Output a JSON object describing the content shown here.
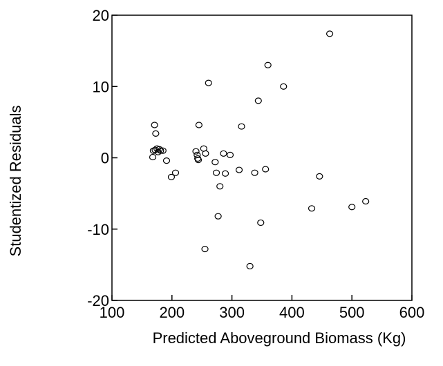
{
  "chart_data": {
    "type": "scatter",
    "title": "",
    "xlabel": "Predicted Aboveground Biomass (Kg)",
    "ylabel": "Studentized Residuals",
    "xlim": [
      100,
      600
    ],
    "ylim": [
      -20,
      20
    ],
    "x_ticks": [
      100,
      200,
      300,
      400,
      500,
      600
    ],
    "y_ticks": [
      -20,
      -10,
      0,
      10,
      20
    ],
    "grid": false,
    "legend": "none",
    "marker": "open-circle",
    "color": "#000000",
    "points": [
      {
        "x": 168,
        "y": 0.1
      },
      {
        "x": 169,
        "y": 1.0
      },
      {
        "x": 171,
        "y": 4.6
      },
      {
        "x": 172,
        "y": 1.1
      },
      {
        "x": 173,
        "y": 3.4
      },
      {
        "x": 175,
        "y": 1.3
      },
      {
        "x": 177,
        "y": 0.8
      },
      {
        "x": 179,
        "y": 1.2
      },
      {
        "x": 181,
        "y": 1.0
      },
      {
        "x": 185,
        "y": 1.0
      },
      {
        "x": 191,
        "y": -0.4
      },
      {
        "x": 199,
        "y": -2.7
      },
      {
        "x": 206,
        "y": -2.1
      },
      {
        "x": 240,
        "y": 0.9
      },
      {
        "x": 242,
        "y": 0.4
      },
      {
        "x": 243,
        "y": -0.1
      },
      {
        "x": 244,
        "y": -0.3
      },
      {
        "x": 245,
        "y": 4.6
      },
      {
        "x": 253,
        "y": 1.3
      },
      {
        "x": 255,
        "y": -12.8
      },
      {
        "x": 256,
        "y": 0.6
      },
      {
        "x": 261,
        "y": 10.5
      },
      {
        "x": 272,
        "y": -0.6
      },
      {
        "x": 274,
        "y": -2.1
      },
      {
        "x": 277,
        "y": -8.2
      },
      {
        "x": 280,
        "y": -4.0
      },
      {
        "x": 286,
        "y": 0.6
      },
      {
        "x": 289,
        "y": -2.2
      },
      {
        "x": 297,
        "y": 0.4
      },
      {
        "x": 312,
        "y": -1.7
      },
      {
        "x": 316,
        "y": 4.4
      },
      {
        "x": 330,
        "y": -15.2
      },
      {
        "x": 338,
        "y": -2.1
      },
      {
        "x": 344,
        "y": 8.0
      },
      {
        "x": 348,
        "y": -9.1
      },
      {
        "x": 356,
        "y": -1.6
      },
      {
        "x": 360,
        "y": 13.0
      },
      {
        "x": 386,
        "y": 10.0
      },
      {
        "x": 433,
        "y": -7.1
      },
      {
        "x": 446,
        "y": -2.6
      },
      {
        "x": 463,
        "y": 17.4
      },
      {
        "x": 500,
        "y": -6.9
      },
      {
        "x": 523,
        "y": -6.1
      }
    ]
  }
}
